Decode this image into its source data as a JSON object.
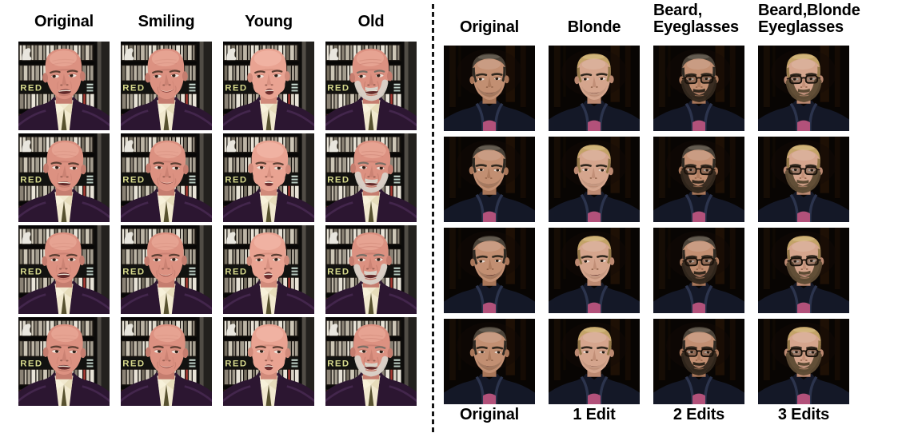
{
  "figure": {
    "separator": {
      "type": "vertical-dashed-line",
      "color": "#161616"
    },
    "left_panel": {
      "headers": [
        "Original",
        "Smiling",
        "Young",
        "Old"
      ],
      "rows": 4,
      "columns": 4,
      "image_variants": [
        "original",
        "smiling",
        "young",
        "old"
      ],
      "subject": "bald man in dark purple jacket speaking in front of bookshelf with RED sign and white bird figurine"
    },
    "right_panel": {
      "headers": [
        "Original",
        "Blonde",
        "Beard,\nEyeglasses",
        "Beard,Blonde\nEyeglasses"
      ],
      "footers": [
        "Original",
        "1 Edit",
        "2 Edits",
        "3 Edits"
      ],
      "rows": 4,
      "columns": 4,
      "image_variants": [
        "original",
        "blonde",
        "beard-eyeglasses",
        "beard-blonde-eyeglasses"
      ],
      "subject": "man with short hair in dark hoodie over pink shirt against dark background"
    },
    "colors": {
      "header_text": "#000000",
      "rock_skin": "#dc9181",
      "rock_skin_young": "#e9a392",
      "rock_jacket": "#2c1631",
      "rock_jacket_sheen": "#43264c",
      "rock_shirt": "#f1e9cf",
      "old_beard": "#d8d2c8",
      "shelf_bg": "#17130f",
      "shelf_sign_text": "#d6d98c",
      "russo_bg": "#080503",
      "russo_skin": "#c28f72",
      "russo_skin_blonde": "#d5a58d",
      "hair_dark": "#4a4238",
      "hair_blonde": "#c3a368",
      "beard_dark": "#32271c",
      "beard_brown": "#5c4a33",
      "hoodie": "#141827",
      "hoodie_fold": "#2c344d",
      "shirt_pink": "#b2517a",
      "glasses": "#1a120b"
    }
  }
}
